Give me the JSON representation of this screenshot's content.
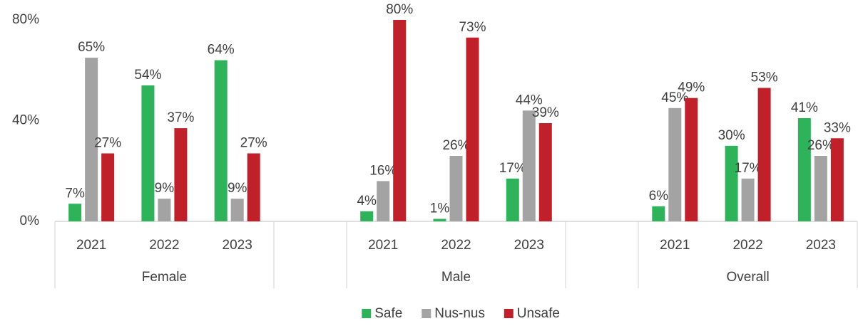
{
  "chart_data": {
    "type": "bar",
    "categories": [
      "2021",
      "2022",
      "2023",
      null,
      "2021",
      "2022",
      "2023",
      null,
      "2021",
      "2022",
      "2023"
    ],
    "groups": [
      "Female",
      "Male",
      "Overall"
    ],
    "series": [
      {
        "name": "Safe",
        "color": "#2eb35a",
        "values": [
          7,
          54,
          64,
          null,
          4,
          1,
          17,
          null,
          6,
          30,
          41
        ],
        "value_labels": [
          "7%",
          "54%",
          "64%",
          null,
          "4%",
          "1%",
          "17%",
          null,
          "6%",
          "30%",
          "41%"
        ]
      },
      {
        "name": "Nus-nus",
        "color": "#a3a3a3",
        "values": [
          65,
          9,
          9,
          null,
          16,
          26,
          44,
          null,
          45,
          17,
          26
        ],
        "value_labels": [
          "65%",
          "9%",
          "9%",
          null,
          "16%",
          "26%",
          "44%",
          null,
          "45%",
          "17%",
          "26%"
        ]
      },
      {
        "name": "Unsafe",
        "color": "#c0202a",
        "values": [
          27,
          37,
          27,
          null,
          80,
          73,
          39,
          null,
          49,
          53,
          33
        ],
        "value_labels": [
          "27%",
          "37%",
          "27%",
          null,
          "80%",
          "73%",
          "39%",
          null,
          "49%",
          "53%",
          "33%"
        ]
      }
    ],
    "ylim": [
      0,
      80
    ],
    "yticks": [
      {
        "value": 0,
        "label": "0%"
      },
      {
        "value": 40,
        "label": "40%"
      },
      {
        "value": 80,
        "label": "80%"
      }
    ],
    "grid": false,
    "legend": "bottom"
  }
}
